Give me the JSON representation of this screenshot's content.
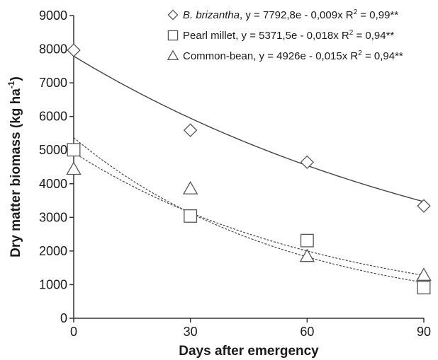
{
  "chart_data": {
    "type": "scatter",
    "xlabel": "Days after emergency",
    "ylabel": "Dry matter biomass (kg ha",
    "ylabel_sup": "-1",
    "ylabel_close": ")",
    "xlim": [
      0,
      90
    ],
    "ylim": [
      0,
      9000
    ],
    "xticks": [
      0,
      30,
      60,
      90
    ],
    "yticks": [
      0,
      1000,
      2000,
      3000,
      4000,
      5000,
      6000,
      7000,
      8000,
      9000
    ],
    "grid": false,
    "legend_position": "top-right",
    "series": [
      {
        "name": "B. brizantha",
        "name_italic": true,
        "equation": ", y = 7792,8e - 0,009x R",
        "r2": " = 0,99**",
        "marker": "diamond",
        "line_style": "solid",
        "fit": {
          "a": 7792.8,
          "b": 0.009
        },
        "x": [
          0,
          30,
          60,
          90
        ],
        "y": [
          7970,
          5590,
          4640,
          3340
        ]
      },
      {
        "name": "Pearl millet",
        "name_italic": false,
        "equation": ", y = 5371,5e - 0,018x R",
        "r2": " = 0,94**",
        "marker": "square",
        "line_style": "dashed",
        "fit": {
          "a": 5371.5,
          "b": 0.018
        },
        "x": [
          0,
          30,
          60,
          90
        ],
        "y": [
          5010,
          3040,
          2310,
          910
        ]
      },
      {
        "name": "Common-bean",
        "name_italic": false,
        "equation": ", y = 4926e - 0,015x R",
        "r2": " = 0,94**",
        "marker": "triangle",
        "line_style": "dashed",
        "fit": {
          "a": 4926,
          "b": 0.015
        },
        "x": [
          0,
          30,
          60,
          90
        ],
        "y": [
          4430,
          3850,
          1840,
          1280
        ]
      }
    ]
  }
}
